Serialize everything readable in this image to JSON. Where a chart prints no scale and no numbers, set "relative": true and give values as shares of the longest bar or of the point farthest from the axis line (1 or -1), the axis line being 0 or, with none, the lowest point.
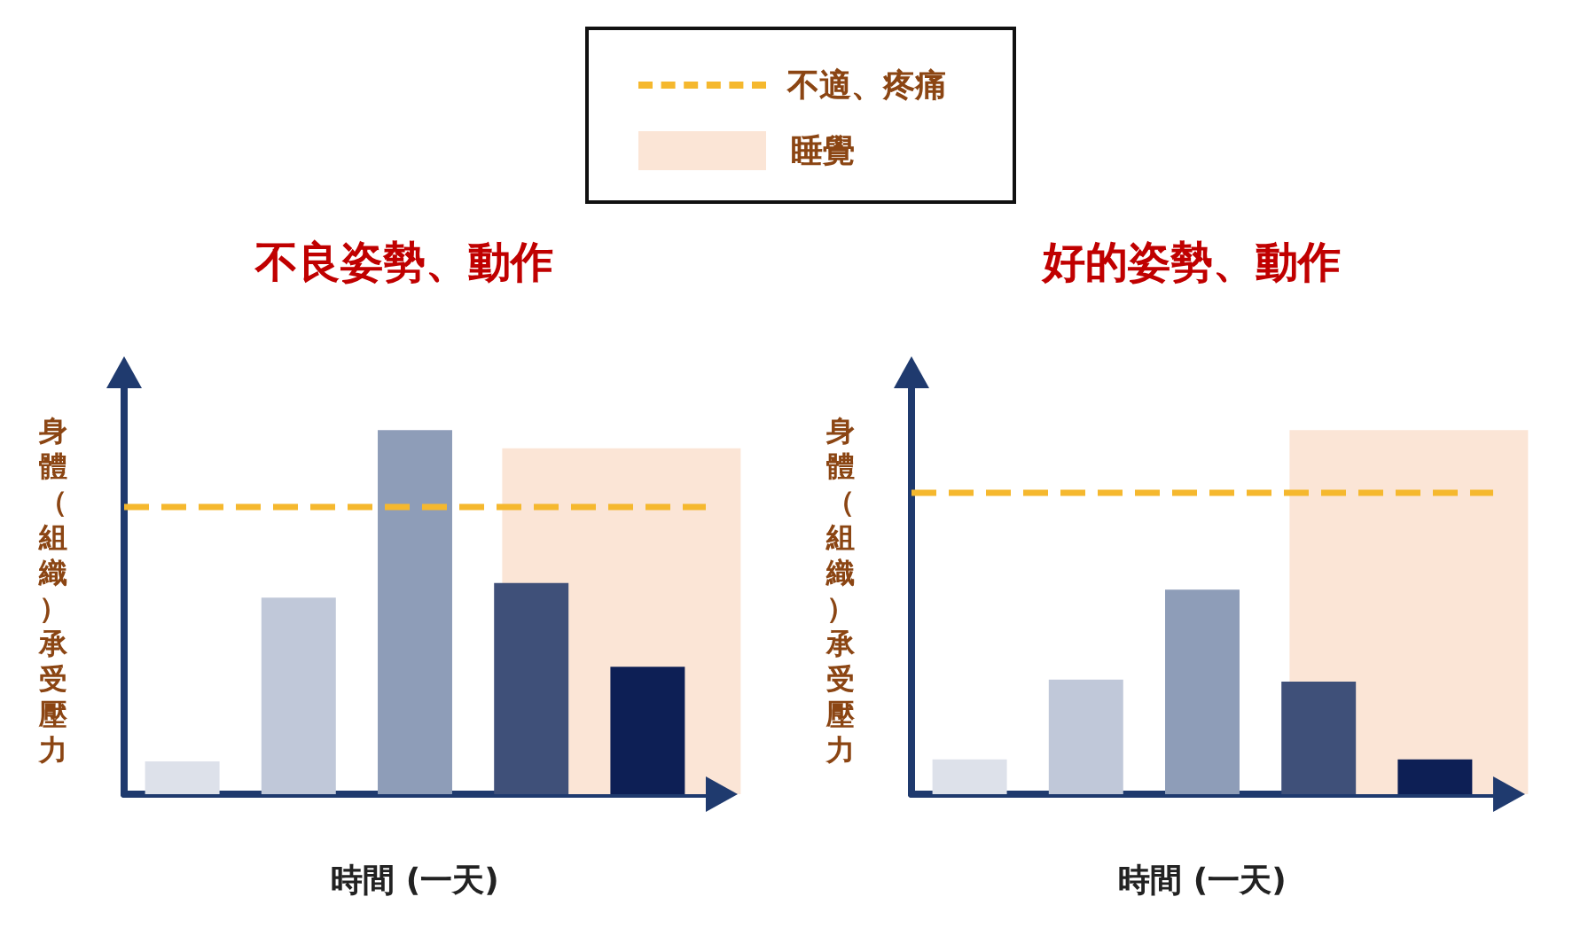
{
  "chart_data": [
    {
      "type": "bar",
      "title": "不良姿勢、動作",
      "xlabel": "時間 (一天)",
      "ylabel": "身體（組織）承受壓力",
      "relative": true,
      "categories": [
        null,
        null,
        null,
        null,
        null
      ],
      "values": [
        0.09,
        0.54,
        1,
        0.58,
        0.35
      ],
      "colors": [
        "#dde1ea",
        "#c0c8d9",
        "#8e9db8",
        "#3f5079",
        "#0d1f55"
      ],
      "ref_lines": [
        {
          "axis": "y",
          "value": 0.79,
          "label": "不適、疼痛",
          "color": "#f5b82e",
          "line_style": "dashed"
        }
      ],
      "bands": [
        {
          "axis": "y",
          "from": 0,
          "to": 0.95,
          "label": "睡覺",
          "color": "#fbe5d6"
        }
      ],
      "legend": "top"
    },
    {
      "type": "bar",
      "title": "好的姿勢、動作",
      "xlabel": "時間 (一天)",
      "ylabel": "身體（組織）承受壓力",
      "relative": true,
      "categories": [
        null,
        null,
        null,
        null,
        null
      ],
      "values": [
        0.17,
        0.56,
        1,
        0.55,
        0.17
      ],
      "colors": [
        "#dde1ea",
        "#c0c8d9",
        "#8e9db8",
        "#3f5079",
        "#0d1f55"
      ],
      "ref_lines": [
        {
          "axis": "y",
          "value": 1.48,
          "color": "#f5b82e",
          "line_style": "dashed"
        }
      ],
      "bands": [
        {
          "axis": "y",
          "from": 0,
          "to": 1.78,
          "color": "#fbe5d6"
        }
      ]
    }
  ]
}
